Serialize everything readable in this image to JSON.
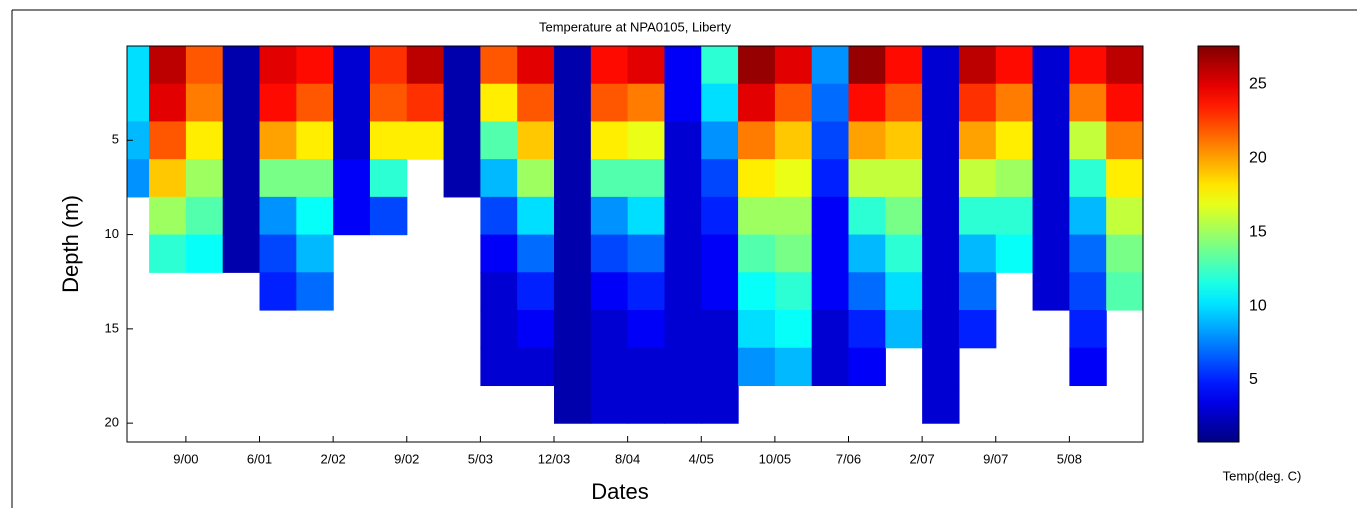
{
  "chart_data": {
    "type": "contour",
    "title": "Temperature at NPA0105, Liberty",
    "x_label": "Dates",
    "y_label": "Depth (m)",
    "colorbar_label": "Temp(deg. C)",
    "colormap": "jet",
    "y_reversed": true,
    "xlim": [
      0.2,
      14
    ],
    "ylim": [
      0,
      21
    ],
    "clim": [
      0.8,
      27.6
    ],
    "xticks": [
      {
        "value": 1,
        "label": "9/00"
      },
      {
        "value": 2,
        "label": "6/01"
      },
      {
        "value": 3,
        "label": "2/02"
      },
      {
        "value": 4,
        "label": "9/02"
      },
      {
        "value": 5,
        "label": "5/03"
      },
      {
        "value": 6,
        "label": "12/03"
      },
      {
        "value": 7,
        "label": "8/04"
      },
      {
        "value": 8,
        "label": "4/05"
      },
      {
        "value": 9,
        "label": "10/05"
      },
      {
        "value": 10,
        "label": "7/06"
      },
      {
        "value": 11,
        "label": "2/07"
      },
      {
        "value": 12,
        "label": "9/07"
      },
      {
        "value": 13,
        "label": "5/08"
      }
    ],
    "yticks": [
      5,
      10,
      15,
      20
    ],
    "cticks": [
      5,
      10,
      15,
      20,
      25
    ],
    "x": [
      0.25,
      0.75,
      1.25,
      1.75,
      2.25,
      2.75,
      3.25,
      3.75,
      4.25,
      4.75,
      5.25,
      5.75,
      6.25,
      6.75,
      7.25,
      7.75,
      8.25,
      8.75,
      9.25,
      9.75,
      10.25,
      10.75,
      11.25,
      11.75,
      12.25,
      12.75,
      13.25,
      13.75
    ],
    "depths": [
      1,
      3,
      5,
      7,
      9,
      11,
      13,
      15,
      17,
      19
    ],
    "values": [
      [
        10,
        10,
        9,
        8,
        null,
        null,
        null,
        null,
        null,
        null
      ],
      [
        26,
        25,
        22,
        19,
        15,
        12,
        null,
        null,
        null,
        null
      ],
      [
        22,
        21,
        18,
        15,
        13,
        11,
        null,
        null,
        null,
        null
      ],
      [
        2,
        2,
        2,
        2,
        2,
        2,
        null,
        null,
        null,
        null
      ],
      [
        25,
        24,
        20,
        14,
        8,
        6,
        5,
        null,
        null,
        null
      ],
      [
        24,
        22,
        18,
        14,
        11,
        9,
        7,
        null,
        null,
        null
      ],
      [
        3,
        3,
        3,
        4,
        4,
        null,
        null,
        null,
        null,
        null
      ],
      [
        23,
        22,
        18,
        12,
        6,
        null,
        null,
        null,
        null,
        null
      ],
      [
        26,
        23,
        18,
        null,
        null,
        null,
        null,
        null,
        null,
        null
      ],
      [
        2,
        2,
        2,
        2,
        null,
        null,
        null,
        null,
        null,
        null
      ],
      [
        22,
        18,
        13,
        9,
        6,
        4,
        3,
        3,
        3,
        null
      ],
      [
        25,
        22,
        19,
        15,
        10,
        7,
        5,
        4,
        3,
        null
      ],
      [
        2,
        2,
        2,
        2,
        2,
        2,
        2,
        2,
        2,
        2
      ],
      [
        24,
        22,
        18,
        13,
        8,
        6,
        4,
        3,
        3,
        3
      ],
      [
        25,
        21,
        17,
        13,
        10,
        7,
        5,
        4,
        3,
        3
      ],
      [
        4,
        4,
        3,
        3,
        3,
        3,
        3,
        3,
        3,
        3
      ],
      [
        12,
        10,
        8,
        6,
        5,
        4,
        4,
        3,
        3,
        3
      ],
      [
        27,
        25,
        21,
        18,
        15,
        13,
        11,
        10,
        8,
        null
      ],
      [
        25,
        22,
        19,
        17,
        15,
        14,
        12,
        11,
        9,
        null
      ],
      [
        8,
        7,
        6,
        5,
        4,
        4,
        4,
        3,
        3,
        null
      ],
      [
        27,
        24,
        20,
        16,
        12,
        9,
        7,
        5,
        4,
        null
      ],
      [
        24,
        22,
        19,
        16,
        14,
        12,
        10,
        9,
        null,
        null
      ],
      [
        3,
        3,
        3,
        3,
        3,
        3,
        3,
        3,
        3,
        3
      ],
      [
        26,
        23,
        20,
        16,
        12,
        9,
        7,
        5,
        null,
        null
      ],
      [
        24,
        21,
        18,
        15,
        12,
        11,
        null,
        null,
        null,
        null
      ],
      [
        3,
        3,
        3,
        3,
        3,
        3,
        3,
        null,
        null,
        null
      ],
      [
        24,
        21,
        16,
        12,
        9,
        7,
        6,
        5,
        4,
        null
      ],
      [
        26,
        24,
        21,
        18,
        16,
        14,
        13,
        null,
        null,
        null
      ]
    ]
  }
}
